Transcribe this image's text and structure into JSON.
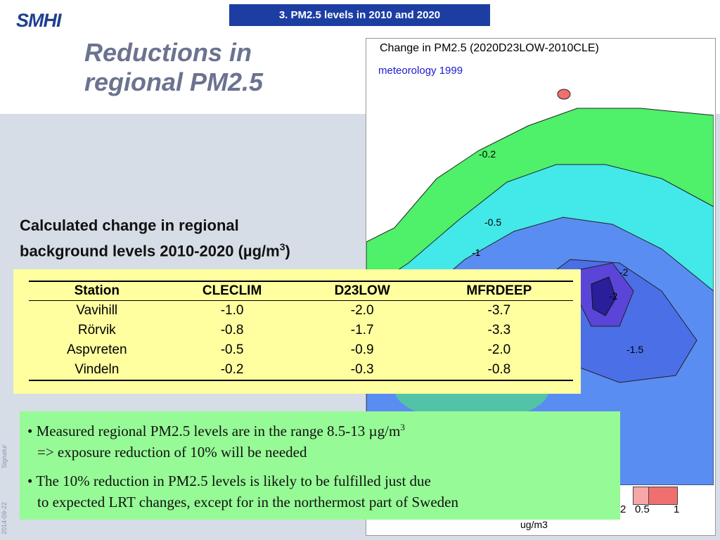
{
  "header": {
    "logo": "SMHI",
    "tab_title": "3. PM2.5 levels in 2010 and 2020"
  },
  "slide": {
    "title_line1": "Reductions in",
    "title_line2": "regional PM2.5",
    "subtitle_line1": "Calculated change in regional",
    "subtitle_line2": "background levels 2010-2020 (µg/m",
    "subtitle_sup": "3",
    "subtitle_end": ")"
  },
  "map": {
    "title": "Change in PM2.5 (2020D23LOW-2010CLE)",
    "meteorology": "meteorology 1999",
    "contour_labels": [
      "-0.2",
      "-0.5",
      "-1",
      "-2",
      "-2",
      "-1.5"
    ],
    "legend_labels": [
      "2",
      "0.5",
      "1"
    ],
    "units": "ug/m3",
    "colors": {
      "green": "#4ff06a",
      "light_green": "#7cf68a",
      "cyan": "#43e8e8",
      "blue": "#5a8df2",
      "mid_blue": "#4b6fe6",
      "purple": "#5a45d8",
      "dark": "#2a1f9a",
      "pink": "#f7a7a7",
      "red": "#f07070"
    }
  },
  "table": {
    "headers": [
      "Station",
      "CLECLIM",
      "D23LOW",
      "MFRDEEP"
    ],
    "rows": [
      [
        "Vavihill",
        "-1.0",
        "-2.0",
        "-3.7"
      ],
      [
        "Rörvik",
        "-0.8",
        "-1.7",
        "-3.3"
      ],
      [
        "Aspvreten",
        "-0.5",
        "-0.9",
        "-2.0"
      ],
      [
        "Vindeln",
        "-0.2",
        "-0.3",
        "-0.8"
      ]
    ]
  },
  "notes": {
    "b1_line1": "• Measured regional PM2.5 levels are in the range 8.5-13 µg/m",
    "b1_sup": "3",
    "b1_line2": "=> exposure reduction of 10% will be needed",
    "b2_line1": "• The 10% reduction in PM2.5 levels is likely to be fulfilled just due",
    "b2_line2": "to expected LRT changes, except for in the northermost part of Sweden"
  },
  "sidebar": {
    "date": "2014-09-22",
    "signature": "Signatur"
  }
}
